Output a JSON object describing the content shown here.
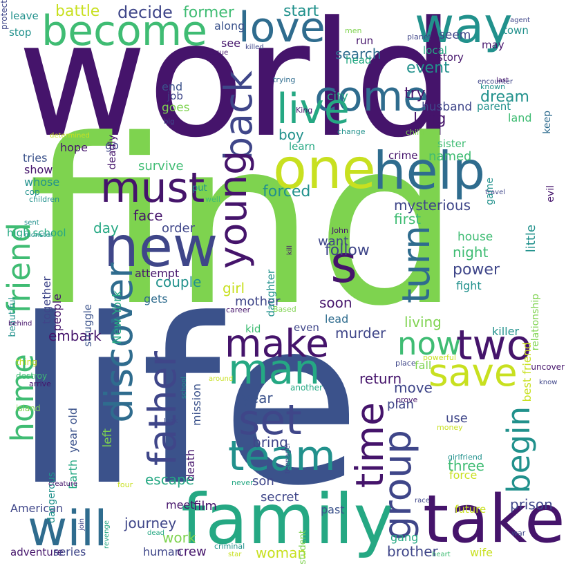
{
  "words": [
    {
      "text": "world",
      "color": "#45146b",
      "vertical": false
    },
    {
      "text": "find",
      "color": "#7ed34f",
      "vertical": false
    },
    {
      "text": "life",
      "color": "#3b528b",
      "vertical": false
    },
    {
      "text": "family",
      "color": "#25a883",
      "vertical": false
    },
    {
      "text": "take",
      "color": "#45146b",
      "vertical": false
    },
    {
      "text": "new",
      "color": "#3f4689",
      "vertical": false
    },
    {
      "text": "one",
      "color": "#c8e020",
      "vertical": false
    },
    {
      "text": "help",
      "color": "#2f6c8e",
      "vertical": false
    },
    {
      "text": "become",
      "color": "#3fbc73",
      "vertical": false
    },
    {
      "text": "way",
      "color": "#21918c",
      "vertical": false
    },
    {
      "text": "love",
      "color": "#2f6c8e",
      "vertical": false
    },
    {
      "text": "come",
      "color": "#2f6c8e",
      "vertical": false
    },
    {
      "text": "live",
      "color": "#25a883",
      "vertical": false
    },
    {
      "text": "must",
      "color": "#45146b",
      "vertical": false
    },
    {
      "text": "s",
      "color": "#45146b",
      "vertical": false
    },
    {
      "text": "make",
      "color": "#45146b",
      "vertical": false
    },
    {
      "text": "man",
      "color": "#25a883",
      "vertical": false
    },
    {
      "text": "now",
      "color": "#3fbc73",
      "vertical": false
    },
    {
      "text": "two",
      "color": "#45146b",
      "vertical": false
    },
    {
      "text": "save",
      "color": "#c8e020",
      "vertical": false
    },
    {
      "text": "set",
      "color": "#3f4689",
      "vertical": false
    },
    {
      "text": "team",
      "color": "#21918c",
      "vertical": false
    },
    {
      "text": "will",
      "color": "#2f6c8e",
      "vertical": false
    },
    {
      "text": "back",
      "color": "#3f4689",
      "vertical": true
    },
    {
      "text": "young",
      "color": "#45146b",
      "vertical": true
    },
    {
      "text": "discover",
      "color": "#2f6c8e",
      "vertical": true
    },
    {
      "text": "father",
      "color": "#3f4689",
      "vertical": true
    },
    {
      "text": "friend",
      "color": "#3fbc73",
      "vertical": true
    },
    {
      "text": "home",
      "color": "#3fbc73",
      "vertical": true
    },
    {
      "text": "turn",
      "color": "#2f6c8e",
      "vertical": true
    },
    {
      "text": "time",
      "color": "#45146b",
      "vertical": true
    },
    {
      "text": "group",
      "color": "#3f4689",
      "vertical": true
    },
    {
      "text": "begin",
      "color": "#21918c",
      "vertical": true
    },
    {
      "text": "battle",
      "color": "#c8e020",
      "vertical": false
    },
    {
      "text": "decide",
      "color": "#3f4689",
      "vertical": false
    },
    {
      "text": "former",
      "color": "#3fbc73",
      "vertical": false
    },
    {
      "text": "start",
      "color": "#21918c",
      "vertical": false
    },
    {
      "text": "leave",
      "color": "#21918c",
      "vertical": false
    },
    {
      "text": "stop",
      "color": "#21918c",
      "vertical": false
    },
    {
      "text": "along",
      "color": "#3b528b",
      "vertical": false
    },
    {
      "text": "see",
      "color": "#45146b",
      "vertical": false
    },
    {
      "text": "seem",
      "color": "#3f4689",
      "vertical": false
    },
    {
      "text": "town",
      "color": "#21918c",
      "vertical": false
    },
    {
      "text": "may",
      "color": "#45146b",
      "vertical": false
    },
    {
      "text": "search",
      "color": "#2f6c8e",
      "vertical": false
    },
    {
      "text": "run",
      "color": "#45146b",
      "vertical": false
    },
    {
      "text": "head",
      "color": "#25a883",
      "vertical": false
    },
    {
      "text": "event",
      "color": "#21918c",
      "vertical": false
    },
    {
      "text": "story",
      "color": "#45146b",
      "vertical": false
    },
    {
      "text": "local",
      "color": "#25a883",
      "vertical": false
    },
    {
      "text": "try",
      "color": "#45146b",
      "vertical": false
    },
    {
      "text": "dream",
      "color": "#21918c",
      "vertical": false
    },
    {
      "text": "city",
      "color": "#25a883",
      "vertical": false
    },
    {
      "text": "husband",
      "color": "#3f4689",
      "vertical": false
    },
    {
      "text": "parent",
      "color": "#21918c",
      "vertical": false
    },
    {
      "text": "land",
      "color": "#3fbc73",
      "vertical": false
    },
    {
      "text": "long",
      "color": "#45146b",
      "vertical": false
    },
    {
      "text": "end",
      "color": "#3b528b",
      "vertical": false
    },
    {
      "text": "job",
      "color": "#3f4689",
      "vertical": false
    },
    {
      "text": "goes",
      "color": "#7ed34f",
      "vertical": false
    },
    {
      "text": "boy",
      "color": "#21918c",
      "vertical": false
    },
    {
      "text": "learn",
      "color": "#25a883",
      "vertical": false
    },
    {
      "text": "sister",
      "color": "#3fbc73",
      "vertical": false
    },
    {
      "text": "hope",
      "color": "#45146b",
      "vertical": false
    },
    {
      "text": "go",
      "color": "#3f4689",
      "vertical": false
    },
    {
      "text": "tries",
      "color": "#3b528b",
      "vertical": false
    },
    {
      "text": "show",
      "color": "#45146b",
      "vertical": false
    },
    {
      "text": "whose",
      "color": "#21918c",
      "vertical": false
    },
    {
      "text": "crime",
      "color": "#45146b",
      "vertical": false
    },
    {
      "text": "named",
      "color": "#3fbc73",
      "vertical": false
    },
    {
      "text": "survive",
      "color": "#3fbc73",
      "vertical": false
    },
    {
      "text": "forced",
      "color": "#21918c",
      "vertical": false
    },
    {
      "text": "mysterious",
      "color": "#3f4689",
      "vertical": false
    },
    {
      "text": "first",
      "color": "#3fbc73",
      "vertical": false
    },
    {
      "text": "face",
      "color": "#45146b",
      "vertical": false
    },
    {
      "text": "day",
      "color": "#25a883",
      "vertical": false
    },
    {
      "text": "order",
      "color": "#3f4689",
      "vertical": false
    },
    {
      "text": "want",
      "color": "#3f4689",
      "vertical": false
    },
    {
      "text": "follow",
      "color": "#3f4689",
      "vertical": false
    },
    {
      "text": "house",
      "color": "#3fbc73",
      "vertical": false
    },
    {
      "text": "night",
      "color": "#3fbc73",
      "vertical": false
    },
    {
      "text": "power",
      "color": "#3f4689",
      "vertical": false
    },
    {
      "text": "fight",
      "color": "#21918c",
      "vertical": false
    },
    {
      "text": "couple",
      "color": "#21918c",
      "vertical": false
    },
    {
      "text": "girl",
      "color": "#c8e020",
      "vertical": false
    },
    {
      "text": "mother",
      "color": "#3f4689",
      "vertical": false
    },
    {
      "text": "soon",
      "color": "#45146b",
      "vertical": false
    },
    {
      "text": "lead",
      "color": "#2f6c8e",
      "vertical": false
    },
    {
      "text": "living",
      "color": "#7ed34f",
      "vertical": false
    },
    {
      "text": "gets",
      "color": "#2f6c8e",
      "vertical": false
    },
    {
      "text": "attempt",
      "color": "#45146b",
      "vertical": false
    },
    {
      "text": "kid",
      "color": "#3fbc73",
      "vertical": false
    },
    {
      "text": "even",
      "color": "#3f4689",
      "vertical": false
    },
    {
      "text": "killer",
      "color": "#21918c",
      "vertical": false
    },
    {
      "text": "embark",
      "color": "#45146b",
      "vertical": false
    },
    {
      "text": "murder",
      "color": "#3f4689",
      "vertical": false
    },
    {
      "text": "return",
      "color": "#45146b",
      "vertical": false
    },
    {
      "text": "fall",
      "color": "#7ed34f",
      "vertical": false
    },
    {
      "text": "move",
      "color": "#3f4689",
      "vertical": false
    },
    {
      "text": "year",
      "color": "#3b528b",
      "vertical": false
    },
    {
      "text": "plan",
      "color": "#3f4689",
      "vertical": false
    },
    {
      "text": "use",
      "color": "#3f4689",
      "vertical": false
    },
    {
      "text": "bring",
      "color": "#3f4689",
      "vertical": false
    },
    {
      "text": "three",
      "color": "#3fbc73",
      "vertical": false
    },
    {
      "text": "escape",
      "color": "#25a883",
      "vertical": false
    },
    {
      "text": "son",
      "color": "#3f4689",
      "vertical": false
    },
    {
      "text": "secret",
      "color": "#3f4689",
      "vertical": false
    },
    {
      "text": "force",
      "color": "#c8e020",
      "vertical": false
    },
    {
      "text": "prison",
      "color": "#3f4689",
      "vertical": false
    },
    {
      "text": "meet",
      "color": "#45146b",
      "vertical": false
    },
    {
      "text": "film",
      "color": "#45146b",
      "vertical": false
    },
    {
      "text": "American",
      "color": "#3f4689",
      "vertical": false
    },
    {
      "text": "journey",
      "color": "#3f4689",
      "vertical": false
    },
    {
      "text": "work",
      "color": "#7ed34f",
      "vertical": false
    },
    {
      "text": "past",
      "color": "#3b528b",
      "vertical": false
    },
    {
      "text": "future",
      "color": "#c8e020",
      "vertical": false
    },
    {
      "text": "gang",
      "color": "#25a883",
      "vertical": false
    },
    {
      "text": "human",
      "color": "#3f4689",
      "vertical": false
    },
    {
      "text": "crew",
      "color": "#45146b",
      "vertical": false
    },
    {
      "text": "woman",
      "color": "#c8e020",
      "vertical": false
    },
    {
      "text": "brother",
      "color": "#3f4689",
      "vertical": false
    },
    {
      "text": "wife",
      "color": "#c8e020",
      "vertical": false
    },
    {
      "text": "adventure",
      "color": "#45146b",
      "vertical": false
    },
    {
      "text": "series",
      "color": "#3f4689",
      "vertical": false
    },
    {
      "text": "high school",
      "color": "#25a883",
      "vertical": false
    },
    {
      "text": "together",
      "color": "#3f4689",
      "vertical": true
    },
    {
      "text": "deadly",
      "color": "#45146b",
      "vertical": true
    },
    {
      "text": "little",
      "color": "#21918c",
      "vertical": true
    },
    {
      "text": "evil",
      "color": "#45146b",
      "vertical": true
    },
    {
      "text": "keep",
      "color": "#2f6c8e",
      "vertical": true
    },
    {
      "text": "relationship",
      "color": "#7ed34f",
      "vertical": true
    },
    {
      "text": "best friend",
      "color": "#c8e020",
      "vertical": true
    },
    {
      "text": "daughter",
      "color": "#21918c",
      "vertical": true
    },
    {
      "text": "people",
      "color": "#45146b",
      "vertical": true
    },
    {
      "text": "struggle",
      "color": "#3b528b",
      "vertical": true
    },
    {
      "text": "beautiful",
      "color": "#21918c",
      "vertical": true
    },
    {
      "text": "left",
      "color": "#7ed34f",
      "vertical": true
    },
    {
      "text": "New York",
      "color": "#25a883",
      "vertical": true
    },
    {
      "text": "Earth",
      "color": "#25a883",
      "vertical": true
    },
    {
      "text": "year old",
      "color": "#3b528b",
      "vertical": true
    },
    {
      "text": "mission",
      "color": "#3b528b",
      "vertical": true
    },
    {
      "text": "death",
      "color": "#45146b",
      "vertical": true
    },
    {
      "text": "dangerous",
      "color": "#21918c",
      "vertical": true
    },
    {
      "text": "student",
      "color": "#7ed34f",
      "vertical": true
    },
    {
      "text": "game",
      "color": "#21918c",
      "vertical": true
    },
    {
      "text": "put",
      "color": "#21918c",
      "vertical": false
    },
    {
      "text": "men",
      "color": "#7ed34f",
      "vertical": false
    },
    {
      "text": "planet",
      "color": "#3f4689",
      "vertical": false
    },
    {
      "text": "agent",
      "color": "#3f4689",
      "vertical": false
    },
    {
      "text": "known",
      "color": "#21918c",
      "vertical": false
    },
    {
      "text": "encounter",
      "color": "#3f4689",
      "vertical": false
    },
    {
      "text": "killed",
      "color": "#3f4689",
      "vertical": false
    },
    {
      "text": "rescue",
      "color": "#45146b",
      "vertical": false
    },
    {
      "text": "trying",
      "color": "#2f6c8e",
      "vertical": false
    },
    {
      "text": "last",
      "color": "#45146b",
      "vertical": false
    },
    {
      "text": "King",
      "color": "#45146b",
      "vertical": false
    },
    {
      "text": "big",
      "color": "#3f4689",
      "vertical": false
    },
    {
      "text": "change",
      "color": "#21918c",
      "vertical": false
    },
    {
      "text": "child",
      "color": "#7ed34f",
      "vertical": false
    },
    {
      "text": "determined",
      "color": "#c8e020",
      "vertical": false
    },
    {
      "text": "cop",
      "color": "#21918c",
      "vertical": false
    },
    {
      "text": "children",
      "color": "#21918c",
      "vertical": false
    },
    {
      "text": "well",
      "color": "#3fbc73",
      "vertical": false
    },
    {
      "text": "travel",
      "color": "#3f4689",
      "vertical": false
    },
    {
      "text": "sent",
      "color": "#21918c",
      "vertical": false
    },
    {
      "text": "monster",
      "color": "#21918c",
      "vertical": false
    },
    {
      "text": "John",
      "color": "#45146b",
      "vertical": false
    },
    {
      "text": "Based",
      "color": "#7ed34f",
      "vertical": false
    },
    {
      "text": "behind",
      "color": "#45146b",
      "vertical": false
    },
    {
      "text": "career",
      "color": "#45146b",
      "vertical": false
    },
    {
      "text": "thing",
      "color": "#c8e020",
      "vertical": false
    },
    {
      "text": "place",
      "color": "#3f4689",
      "vertical": false
    },
    {
      "text": "powerful",
      "color": "#c8e020",
      "vertical": false
    },
    {
      "text": "uncover",
      "color": "#45146b",
      "vertical": false
    },
    {
      "text": "destroy",
      "color": "#3fbc73",
      "vertical": false
    },
    {
      "text": "arrive",
      "color": "#45146b",
      "vertical": false
    },
    {
      "text": "around",
      "color": "#c8e020",
      "vertical": false
    },
    {
      "text": "know",
      "color": "#3f4689",
      "vertical": false
    },
    {
      "text": "prove",
      "color": "#45146b",
      "vertical": false
    },
    {
      "text": "another",
      "color": "#25a883",
      "vertical": false
    },
    {
      "text": "island",
      "color": "#7ed34f",
      "vertical": false
    },
    {
      "text": "Jack",
      "color": "#3f4689",
      "vertical": false
    },
    {
      "text": "money",
      "color": "#c8e020",
      "vertical": false
    },
    {
      "text": "girlfriend",
      "color": "#21918c",
      "vertical": false
    },
    {
      "text": "creature",
      "color": "#45146b",
      "vertical": false
    },
    {
      "text": "four",
      "color": "#c8e020",
      "vertical": false
    },
    {
      "text": "never",
      "color": "#25a883",
      "vertical": false
    },
    {
      "text": "race",
      "color": "#3f4689",
      "vertical": false
    },
    {
      "text": "dead",
      "color": "#25a883",
      "vertical": false
    },
    {
      "text": "war",
      "color": "#3f4689",
      "vertical": false
    },
    {
      "text": "criminal",
      "color": "#21918c",
      "vertical": false
    },
    {
      "text": "star",
      "color": "#c8e020",
      "vertical": false
    },
    {
      "text": "heart",
      "color": "#3fbc73",
      "vertical": false
    },
    {
      "text": "old",
      "color": "#45146b",
      "vertical": false
    },
    {
      "text": "kill",
      "color": "#45146b",
      "vertical": true
    },
    {
      "text": "school",
      "color": "#21918c",
      "vertical": true
    },
    {
      "text": "teenager",
      "color": "#3f4689",
      "vertical": true
    },
    {
      "text": "join",
      "color": "#3f4689",
      "vertical": true
    },
    {
      "text": "revenge",
      "color": "#25a883",
      "vertical": true
    },
    {
      "text": "protect",
      "color": "#3f4689",
      "vertical": true
    }
  ]
}
